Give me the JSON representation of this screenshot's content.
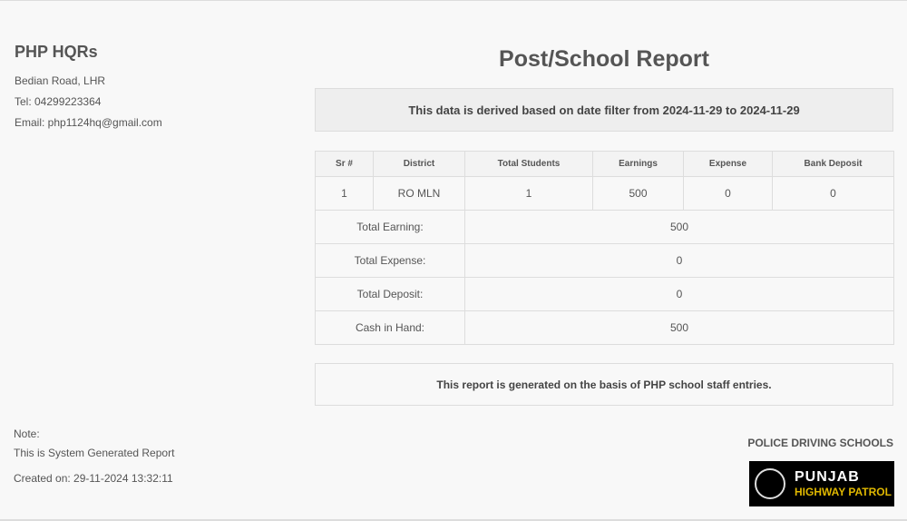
{
  "org": {
    "name": "PHP HQRs",
    "address": "Bedian Road, LHR",
    "tel": "Tel: 04299223364",
    "email": "Email: php1124hq@gmail.com"
  },
  "title": "Post/School Report",
  "filter_text": "This data is derived based on date filter from 2024-11-29 to 2024-11-29",
  "table": {
    "headers": [
      "Sr #",
      "District",
      "Total Students",
      "Earnings",
      "Expense",
      "Bank Deposit"
    ],
    "rows": [
      [
        "1",
        "RO MLN",
        "1",
        "500",
        "0",
        "0"
      ]
    ],
    "summary": [
      {
        "label": "Total Earning:",
        "value": "500"
      },
      {
        "label": "Total Expense:",
        "value": "0"
      },
      {
        "label": "Total Deposit:",
        "value": "0"
      },
      {
        "label": "Cash in Hand:",
        "value": "500"
      }
    ]
  },
  "report_note": "This report is generated on the basis of PHP school staff entries.",
  "footer": {
    "note_label": "Note:",
    "note": "This is System Generated Report",
    "created": "Created on: 29-11-2024 13:32:11",
    "brand": "POLICE DRIVING SCHOOLS",
    "logo_line1": "PUNJAB",
    "logo_line2": "HIGHWAY PATROL"
  }
}
